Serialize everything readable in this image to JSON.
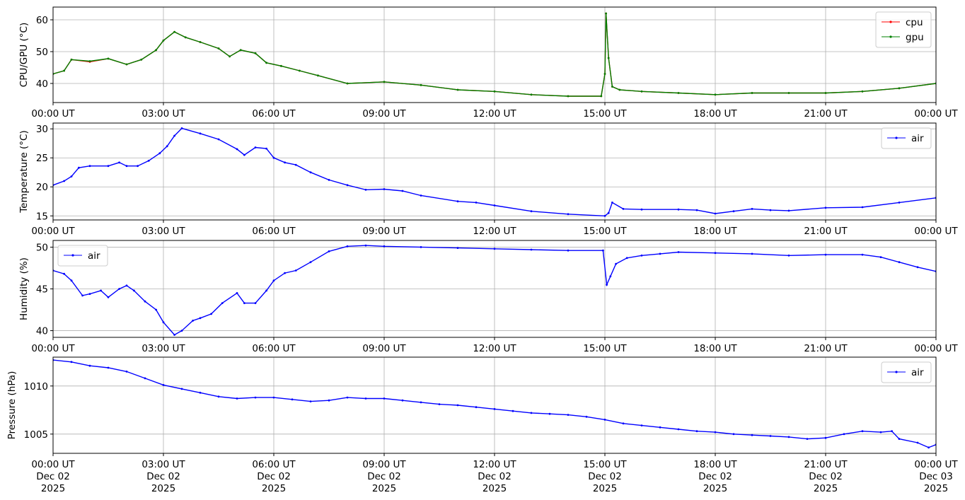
{
  "chart_data": [
    {
      "type": "line",
      "ylabel": "CPU/GPU (°C)",
      "xlim": [
        "00:00 UT",
        "00:00 UT"
      ],
      "ylim": [
        34,
        64
      ],
      "yticks": [
        40,
        50,
        60
      ],
      "grid": true,
      "legend_position": "top-right",
      "xtick_labels": [
        "00:00 UT",
        "03:00 UT",
        "06:00 UT",
        "09:00 UT",
        "12:00 UT",
        "15:00 UT",
        "18:00 UT",
        "21:00 UT",
        "00:00 UT"
      ],
      "series": [
        {
          "name": "cpu",
          "color": "#ff0000",
          "x": [
            0,
            0.3,
            0.5,
            1,
            1.5,
            2,
            2.4,
            2.8,
            3.0,
            3.3,
            3.6,
            4.0,
            4.5,
            4.8,
            5.1,
            5.5,
            5.8,
            6.2,
            6.7,
            7.2,
            8.0,
            9.0,
            10.0,
            11.0,
            12.0,
            13.0,
            14.0,
            14.9,
            15.0,
            15.03,
            15.1,
            15.2,
            15.4,
            16.0,
            17.0,
            18.0,
            19.0,
            20.0,
            21.0,
            22.0,
            23.0,
            24.0
          ],
          "y": [
            43,
            44,
            47.5,
            46.8,
            47.8,
            46,
            47.5,
            50.5,
            53.5,
            56.2,
            54.5,
            53,
            51,
            48.5,
            50.5,
            49.5,
            46.5,
            45.5,
            44,
            42.5,
            40,
            40.5,
            39.5,
            38,
            37.5,
            36.5,
            36,
            36,
            43,
            62,
            48,
            39,
            38,
            37.5,
            37,
            36.5,
            37,
            37,
            37,
            37.5,
            38.5,
            40
          ]
        },
        {
          "name": "gpu",
          "color": "#008000",
          "x": [
            0,
            0.3,
            0.5,
            1,
            1.5,
            2,
            2.4,
            2.8,
            3.0,
            3.3,
            3.6,
            4.0,
            4.5,
            4.8,
            5.1,
            5.5,
            5.8,
            6.2,
            6.7,
            7.2,
            8.0,
            9.0,
            10.0,
            11.0,
            12.0,
            13.0,
            14.0,
            14.9,
            15.0,
            15.03,
            15.1,
            15.2,
            15.4,
            16.0,
            17.0,
            18.0,
            19.0,
            20.0,
            21.0,
            22.0,
            23.0,
            24.0
          ],
          "y": [
            43,
            44,
            47.5,
            47,
            47.8,
            46,
            47.5,
            50.5,
            53.5,
            56.2,
            54.5,
            53,
            51,
            48.5,
            50.5,
            49.5,
            46.5,
            45.5,
            44,
            42.5,
            40,
            40.5,
            39.5,
            38,
            37.5,
            36.5,
            36,
            36,
            43,
            62,
            48,
            39,
            38,
            37.5,
            37,
            36.5,
            37,
            37,
            37,
            37.5,
            38.5,
            40
          ]
        }
      ]
    },
    {
      "type": "line",
      "ylabel": "Temperature (°C)",
      "xlim": [
        "00:00 UT",
        "00:00 UT"
      ],
      "ylim": [
        14.3,
        31
      ],
      "yticks": [
        15,
        20,
        25,
        30
      ],
      "grid": true,
      "legend_position": "top-right",
      "xtick_labels": [
        "00:00 UT",
        "03:00 UT",
        "06:00 UT",
        "09:00 UT",
        "12:00 UT",
        "15:00 UT",
        "18:00 UT",
        "21:00 UT",
        "00:00 UT"
      ],
      "series": [
        {
          "name": "air",
          "color": "#0000ff",
          "x": [
            0,
            0.3,
            0.5,
            0.7,
            1.0,
            1.5,
            1.8,
            2.0,
            2.3,
            2.6,
            2.9,
            3.1,
            3.3,
            3.5,
            4.0,
            4.5,
            5.0,
            5.2,
            5.5,
            5.8,
            6.0,
            6.3,
            6.6,
            7.0,
            7.5,
            8.0,
            8.5,
            9.0,
            9.5,
            10.0,
            11.0,
            11.5,
            12.0,
            13.0,
            14.0,
            15.0,
            15.1,
            15.2,
            15.5,
            16.0,
            17.0,
            17.5,
            18.0,
            18.5,
            19.0,
            19.5,
            20.0,
            21.0,
            22.0,
            23.0,
            24.0
          ],
          "y": [
            20.3,
            21,
            21.8,
            23.3,
            23.6,
            23.6,
            24.2,
            23.6,
            23.6,
            24.5,
            25.8,
            27,
            28.8,
            30.1,
            29.2,
            28.2,
            26.5,
            25.5,
            26.8,
            26.6,
            25,
            24.2,
            23.8,
            22.5,
            21.2,
            20.3,
            19.5,
            19.6,
            19.3,
            18.5,
            17.5,
            17.3,
            16.8,
            15.8,
            15.3,
            15,
            15.5,
            17.3,
            16.2,
            16.1,
            16.1,
            16,
            15.4,
            15.8,
            16.2,
            16,
            15.9,
            16.4,
            16.5,
            17.3,
            18.1
          ]
        }
      ]
    },
    {
      "type": "line",
      "ylabel": "Humidity (%)",
      "xlim": [
        "00:00 UT",
        "00:00 UT"
      ],
      "ylim": [
        39.2,
        50.8
      ],
      "yticks": [
        40,
        45,
        50
      ],
      "grid": true,
      "legend_position": "top-left",
      "xtick_labels": [
        "00:00 UT",
        "03:00 UT",
        "06:00 UT",
        "09:00 UT",
        "12:00 UT",
        "15:00 UT",
        "18:00 UT",
        "21:00 UT",
        "00:00 UT"
      ],
      "series": [
        {
          "name": "air",
          "color": "#0000ff",
          "x": [
            0,
            0.3,
            0.5,
            0.8,
            1.0,
            1.3,
            1.5,
            1.8,
            2.0,
            2.2,
            2.5,
            2.8,
            3.0,
            3.3,
            3.5,
            3.8,
            4.0,
            4.3,
            4.6,
            5.0,
            5.2,
            5.5,
            5.8,
            6.0,
            6.3,
            6.6,
            7.0,
            7.5,
            8.0,
            8.5,
            9.0,
            10.0,
            11.0,
            12.0,
            13.0,
            14.0,
            14.95,
            15.05,
            15.15,
            15.3,
            15.6,
            16.0,
            16.5,
            17.0,
            18.0,
            19.0,
            20.0,
            21.0,
            22.0,
            22.5,
            23.0,
            23.5,
            24.0
          ],
          "y": [
            47.2,
            46.8,
            46,
            44.2,
            44.4,
            44.8,
            44,
            45,
            45.4,
            44.8,
            43.5,
            42.5,
            41,
            39.5,
            40,
            41.2,
            41.5,
            42,
            43.3,
            44.5,
            43.3,
            43.3,
            44.8,
            46,
            46.9,
            47.2,
            48.2,
            49.5,
            50.1,
            50.2,
            50.1,
            50,
            49.9,
            49.8,
            49.7,
            49.6,
            49.6,
            45.5,
            46.5,
            48,
            48.7,
            49,
            49.2,
            49.4,
            49.3,
            49.2,
            49,
            49.1,
            49.1,
            48.8,
            48.2,
            47.6,
            47.1
          ]
        }
      ]
    },
    {
      "type": "line",
      "ylabel": "Pressure (hPa)",
      "xlim": [
        "00:00 UT Dec 02 2025",
        "00:00 UT Dec 03 2025"
      ],
      "ylim": [
        1003,
        1013
      ],
      "yticks": [
        1005,
        1010
      ],
      "grid": true,
      "legend_position": "top-right",
      "xtick_labels": [
        [
          "00:00 UT",
          "Dec 02",
          "2025"
        ],
        [
          "03:00 UT",
          "Dec 02",
          "2025"
        ],
        [
          "06:00 UT",
          "Dec 02",
          "2025"
        ],
        [
          "09:00 UT",
          "Dec 02",
          "2025"
        ],
        [
          "12:00 UT",
          "Dec 02",
          "2025"
        ],
        [
          "15:00 UT",
          "Dec 02",
          "2025"
        ],
        [
          "18:00 UT",
          "Dec 02",
          "2025"
        ],
        [
          "21:00 UT",
          "Dec 02",
          "2025"
        ],
        [
          "00:00 UT",
          "Dec 03",
          "2025"
        ]
      ],
      "series": [
        {
          "name": "air",
          "color": "#0000ff",
          "x": [
            0,
            0.5,
            1.0,
            1.5,
            2.0,
            2.5,
            3.0,
            3.5,
            4.0,
            4.5,
            5.0,
            5.5,
            6.0,
            6.5,
            7.0,
            7.5,
            8.0,
            8.5,
            9.0,
            9.5,
            10.0,
            10.5,
            11.0,
            11.5,
            12.0,
            12.5,
            13.0,
            13.5,
            14.0,
            14.5,
            15.0,
            15.5,
            16.0,
            16.5,
            17.0,
            17.5,
            18.0,
            18.5,
            19.0,
            19.5,
            20.0,
            20.5,
            21.0,
            21.5,
            22.0,
            22.5,
            22.8,
            23.0,
            23.5,
            23.8,
            24.0
          ],
          "y": [
            1012.7,
            1012.5,
            1012.1,
            1011.9,
            1011.5,
            1010.8,
            1010.1,
            1009.7,
            1009.3,
            1008.9,
            1008.7,
            1008.8,
            1008.8,
            1008.6,
            1008.4,
            1008.5,
            1008.8,
            1008.7,
            1008.7,
            1008.5,
            1008.3,
            1008.1,
            1008.0,
            1007.8,
            1007.6,
            1007.4,
            1007.2,
            1007.1,
            1007.0,
            1006.8,
            1006.5,
            1006.1,
            1005.9,
            1005.7,
            1005.5,
            1005.3,
            1005.2,
            1005.0,
            1004.9,
            1004.8,
            1004.7,
            1004.5,
            1004.6,
            1005.0,
            1005.3,
            1005.2,
            1005.3,
            1004.5,
            1004.1,
            1003.6,
            1003.9
          ]
        }
      ]
    }
  ]
}
